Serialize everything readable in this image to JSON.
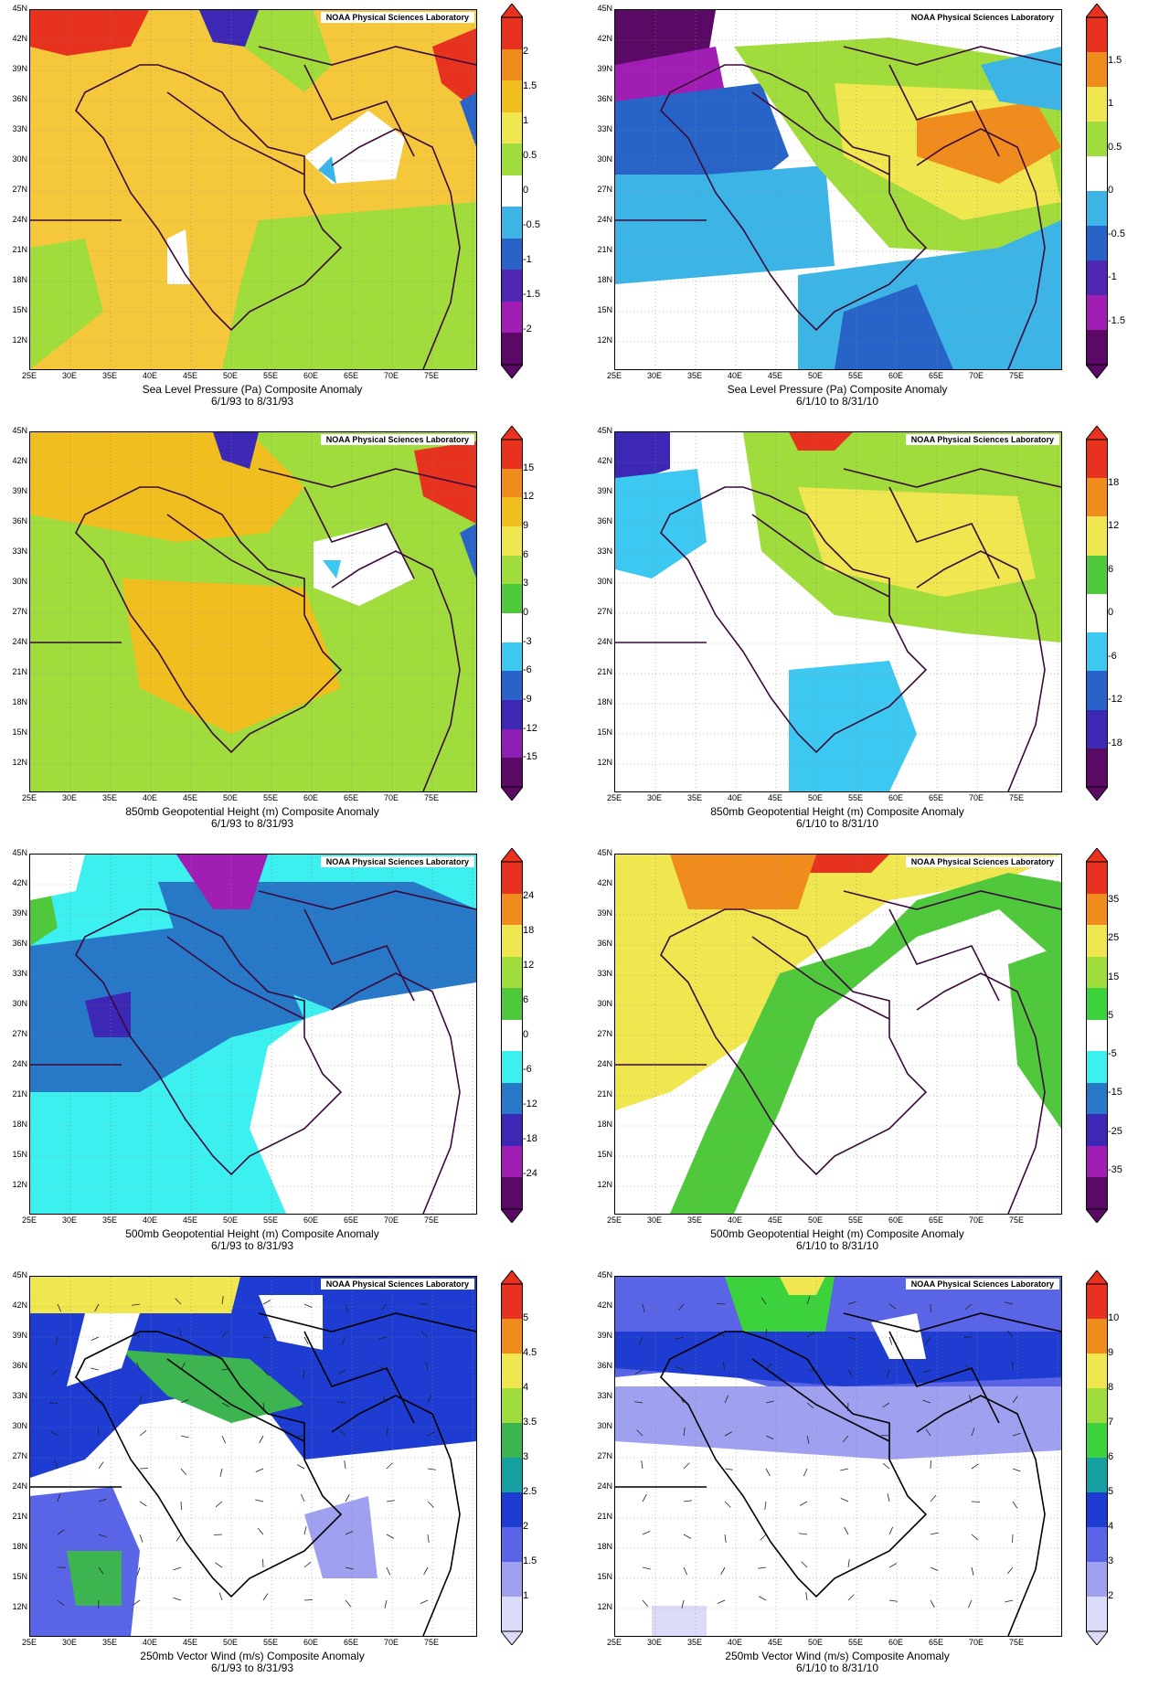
{
  "credit": "NOAA Physical Sciences Laboratory",
  "lat_labels": [
    "45N",
    "42N",
    "39N",
    "36N",
    "33N",
    "30N",
    "27N",
    "24N",
    "21N",
    "18N",
    "15N",
    "12N"
  ],
  "lon_labels": [
    "25E",
    "30E",
    "35E",
    "40E",
    "45E",
    "50E",
    "55E",
    "60E",
    "65E",
    "70E",
    "75E"
  ],
  "panels": [
    {
      "id": "slp-1993",
      "title": "Sea Level Pressure (Pa) Composite Anomaly",
      "dates": "6/1/93  to 8/31/93",
      "ticks": [
        "2",
        "1.5",
        "1",
        "0.5",
        "0",
        "-0.5",
        "-1",
        "-1.5",
        "-2"
      ],
      "colors": [
        "#e6321e",
        "#f08c1e",
        "#f0be1e",
        "#f0e650",
        "#a0dc3c",
        "#ffffff",
        "#3cb4e6",
        "#2864c8",
        "#5028b4",
        "#a01eb4",
        "#5a0a64"
      ],
      "fill": "#f5c83c"
    },
    {
      "id": "slp-2010",
      "title": "Sea Level Pressure (Pa) Composite Anomaly",
      "dates": "6/1/10  to 8/31/10",
      "ticks": [
        "1.5",
        "1",
        "0.5",
        "0",
        "-0.5",
        "-1",
        "-1.5"
      ],
      "colors": [
        "#e6321e",
        "#f08c1e",
        "#f0e650",
        "#a0dc3c",
        "#ffffff",
        "#3cb4e6",
        "#2864c8",
        "#5028b4",
        "#a01eb4",
        "#5a0a64"
      ],
      "fill": "#ffffff"
    },
    {
      "id": "z850-1993",
      "title": "850mb Geopotential Height (m) Composite Anomaly",
      "dates": "6/1/93  to 8/31/93",
      "ticks": [
        "15",
        "12",
        "9",
        "6",
        "3",
        "0",
        "-3",
        "-6",
        "-9",
        "-12",
        "-15"
      ],
      "colors": [
        "#e6321e",
        "#f08c1e",
        "#f0be1e",
        "#f0e650",
        "#a0dc3c",
        "#50c83c",
        "#ffffff",
        "#3cc8f0",
        "#2864c8",
        "#3c28b4",
        "#8c1eb4",
        "#5a0a64"
      ],
      "fill": "#a0dc3c"
    },
    {
      "id": "z850-2010",
      "title": "850mb Geopotential Height (m) Composite Anomaly",
      "dates": "6/1/10  to 8/31/10",
      "ticks": [
        "18",
        "12",
        "6",
        "0",
        "-6",
        "-12",
        "-18"
      ],
      "colors": [
        "#e6321e",
        "#f08c1e",
        "#f0e650",
        "#50c83c",
        "#ffffff",
        "#3cc8f0",
        "#2864c8",
        "#3c28b4",
        "#5a0a64"
      ],
      "fill": "#ffffff"
    },
    {
      "id": "z500-1993",
      "title": "500mb Geopotential Height (m) Composite Anomaly",
      "dates": "6/1/93  to 8/31/93",
      "ticks": [
        "24",
        "18",
        "12",
        "6",
        "0",
        "-6",
        "-12",
        "-18",
        "-24"
      ],
      "colors": [
        "#e6321e",
        "#f08c1e",
        "#f0e650",
        "#a0dc3c",
        "#50c83c",
        "#ffffff",
        "#3cf0f0",
        "#2878c8",
        "#3c28b4",
        "#a01eb4",
        "#5a0a64"
      ],
      "fill": "#3cf0f0"
    },
    {
      "id": "z500-2010",
      "title": "500mb Geopotential Height (m) Composite Anomaly",
      "dates": "6/1/10  to 8/31/10",
      "ticks": [
        "35",
        "25",
        "15",
        "5",
        "-5",
        "-15",
        "-25",
        "-35"
      ],
      "colors": [
        "#e6321e",
        "#f08c1e",
        "#f0e650",
        "#a0dc3c",
        "#3cd23c",
        "#ffffff",
        "#3cf0f0",
        "#2878c8",
        "#3c28b4",
        "#a01eb4",
        "#5a0a64"
      ],
      "fill": "#ffffff"
    },
    {
      "id": "uv250-1993",
      "title": "250mb Vector Wind (m/s) Composite Anomaly",
      "dates": "6/1/93  to 8/31/93",
      "ticks": [
        "5",
        "4.5",
        "4",
        "3.5",
        "3",
        "2.5",
        "2",
        "1.5",
        "1"
      ],
      "colors": [
        "#e6321e",
        "#f08c1e",
        "#f0e650",
        "#a0dc3c",
        "#3cb450",
        "#14a0a0",
        "#1e3cd2",
        "#5a64e6",
        "#a0a0f0",
        "#dcdcfa"
      ],
      "fill": "#ffffff"
    },
    {
      "id": "uv250-2010",
      "title": "250mb Vector Wind (m/s) Composite Anomaly",
      "dates": "6/1/10  to 8/31/10",
      "ticks": [
        "10",
        "9",
        "8",
        "7",
        "6",
        "5",
        "4",
        "3",
        "2"
      ],
      "colors": [
        "#e6321e",
        "#f08c1e",
        "#f0e650",
        "#a0dc3c",
        "#3cd23c",
        "#14a0a0",
        "#1e3cd2",
        "#5a64e6",
        "#a0a0f0",
        "#dcdcfa"
      ],
      "fill": "#ffffff"
    }
  ]
}
